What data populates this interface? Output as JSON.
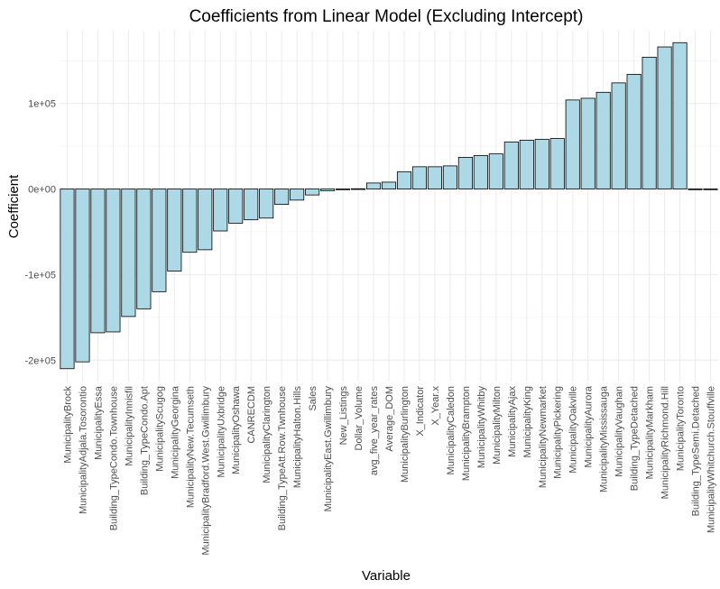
{
  "chart_data": {
    "type": "bar",
    "title": "Coefficients from Linear Model (Excluding Intercept)",
    "xlabel": "Variable",
    "ylabel": "Coefficient",
    "ylim": [
      -225000,
      185000
    ],
    "yticks": [
      -200000,
      -100000,
      0,
      100000
    ],
    "ytick_labels": [
      "-2e+05",
      "-1e+05",
      "0e+00",
      "1e+05"
    ],
    "grid": true,
    "bar_color": "#ADD8E6",
    "bar_edge_color": "#000000",
    "categories": [
      "MunicipalityBrock",
      "MunicipalityAdjala.Tosorontio",
      "MunicipalityEssa",
      "Building_TypeCondo.Townhouse",
      "MunicipalityInnisfil",
      "Building_TypeCondo.Apt",
      "MunicipalityScugog",
      "MunicipalityGeorgina",
      "MunicipalityNew.Tecumseth",
      "MunicipalityBradford.West.Gwillimbury",
      "MunicipalityUxbridge",
      "MunicipalityOshawa",
      "CANRECDM",
      "MunicipalityClarington",
      "Building_TypeAtt.Row.Twnhouse",
      "MunicipalityHalton.Hills",
      "Sales",
      "MunicipalityEast.Gwillimbury",
      "New_Listings",
      "Dollar_Volume",
      "avg_five_year_rates",
      "Average_DOM",
      "MunicipalityBurlington",
      "X_Indicator",
      "X_Year.x",
      "MunicipalityCaledon",
      "MunicipalityBrampton",
      "MunicipalityWhitby",
      "MunicipalityMilton",
      "MunicipalityAjax",
      "MunicipalityKing",
      "MunicipalityNewmarket",
      "MunicipalityPickering",
      "MunicipalityOakville",
      "MunicipalityAurora",
      "MunicipalityMississauga",
      "MunicipalityVaughan",
      "Building_TypeDetached",
      "MunicipalityMarkham",
      "MunicipalityRichmond.Hill",
      "MunicipalityToronto",
      "Building_TypeSemi.Detached",
      "MunicipalityWhitchurch.Stouffville"
    ],
    "values": [
      -210000,
      -202000,
      -168000,
      -167000,
      -149000,
      -140000,
      -120000,
      -96000,
      -74000,
      -71000,
      -49000,
      -40000,
      -36000,
      -34000,
      -18000,
      -13000,
      -7000,
      -2000,
      -500,
      300,
      7000,
      8000,
      20000,
      26000,
      26000,
      27000,
      37000,
      39000,
      41000,
      55000,
      57000,
      58000,
      59000,
      104000,
      106000,
      113000,
      124000,
      134000,
      154000,
      166000,
      171000,
      0,
      0
    ]
  }
}
